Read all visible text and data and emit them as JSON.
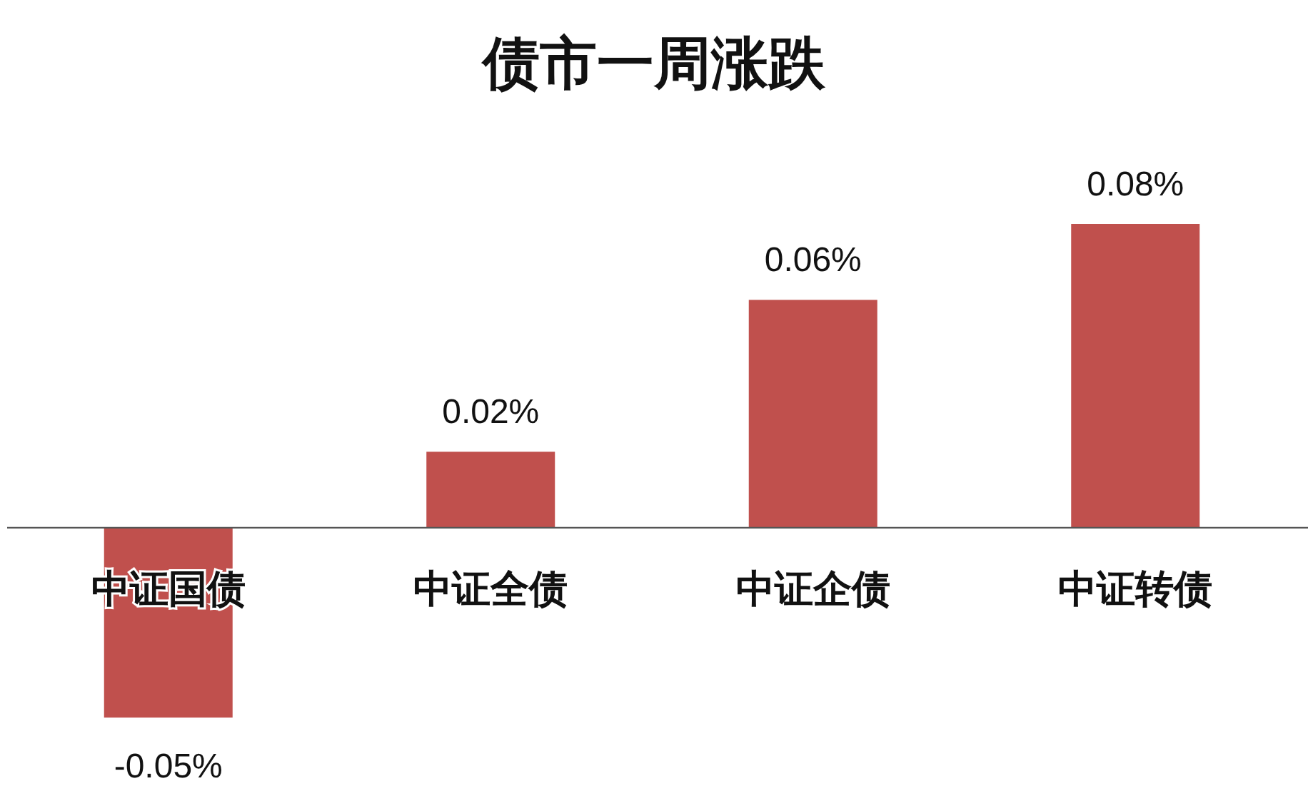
{
  "chart_data": {
    "type": "bar",
    "title": "债市一周涨跌",
    "categories": [
      "中证国债",
      "中证全债",
      "中证企债",
      "中证转债"
    ],
    "values": [
      -0.05,
      0.02,
      0.06,
      0.08
    ],
    "value_labels": [
      "-0.05%",
      "0.02%",
      "0.06%",
      "0.08%"
    ],
    "color": "#c0504d"
  }
}
